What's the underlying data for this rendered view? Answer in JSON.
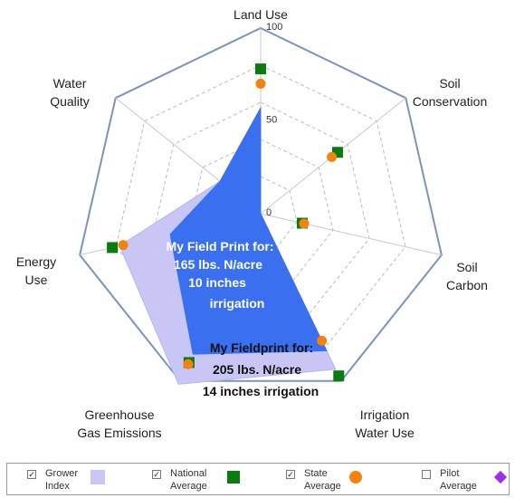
{
  "chart_data": {
    "type": "radar",
    "axes": [
      "Land Use",
      "Soil Conservation",
      "Soil Carbon",
      "Irrigation Water Use",
      "Greenhouse Gas Emissions",
      "Energy Use",
      "Water Quality"
    ],
    "axis_label_lines": [
      [
        "Land Use"
      ],
      [
        "Soil",
        "Conservation"
      ],
      [
        "Soil",
        "Carbon"
      ],
      [
        "Irrigation",
        "Water Use"
      ],
      [
        "Greenhouse",
        "Gas Emissions"
      ],
      [
        "Energy",
        "Use"
      ],
      [
        "Water",
        "Quality"
      ]
    ],
    "range": [
      0,
      100
    ],
    "tick_labels": [
      "100",
      "50",
      "0"
    ],
    "series": [
      {
        "name": "Grower Index",
        "values": [
          57,
          0,
          0,
          93,
          102,
          78,
          28
        ],
        "color": "#c8c6f4"
      },
      {
        "name": "National Average",
        "values": [
          78,
          53,
          23,
          97,
          89,
          82,
          null
        ],
        "color": "#0a7a12"
      },
      {
        "name": "State Average",
        "values": [
          70,
          49,
          24,
          76,
          90,
          76,
          null
        ],
        "color": "#f4820c"
      },
      {
        "name": "Pilot Average",
        "values": [],
        "color": "#9b30e8"
      }
    ],
    "overlay_series": [
      {
        "values": [
          57,
          0,
          0,
          82,
          84,
          50,
          28
        ],
        "color": "#3a6fef"
      }
    ]
  },
  "overlays": {
    "field_print_10": [
      "My Field Print for:",
      "165 lbs. N/acre",
      "10 inches",
      "irrigation"
    ],
    "field_print_14": [
      "My Fieldprint for:",
      "205 lbs. N/acre",
      "14 inches irrigation"
    ]
  },
  "legend": {
    "items": [
      {
        "line1": "Grower",
        "line2": "Index",
        "checked": true,
        "symbol": "square",
        "color": "#c8c6f4"
      },
      {
        "line1": "National",
        "line2": "Average",
        "checked": true,
        "symbol": "square",
        "color": "#0a7a12"
      },
      {
        "line1": "State",
        "line2": "Average",
        "checked": true,
        "symbol": "circle",
        "color": "#f4820c"
      },
      {
        "line1": "Pilot",
        "line2": "Average",
        "checked": false,
        "symbol": "diamond",
        "color": "#9b30e8"
      }
    ]
  }
}
